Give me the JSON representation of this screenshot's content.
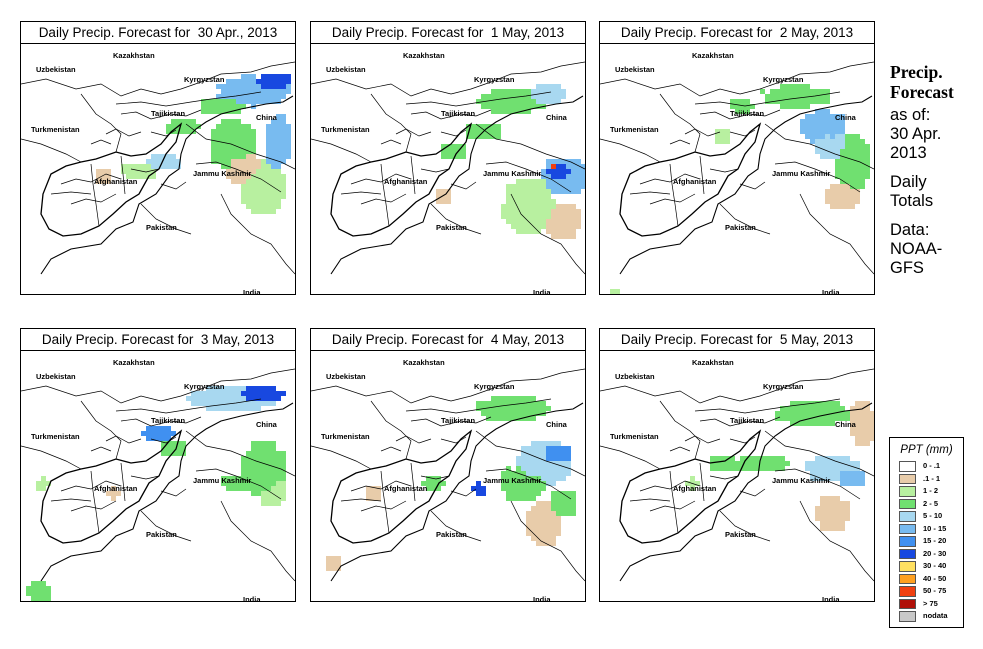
{
  "panels": [
    {
      "title": "Daily Precip. Forecast for  30 Apr., 2013",
      "pattern": 0
    },
    {
      "title": "Daily Precip. Forecast for  1 May, 2013",
      "pattern": 1
    },
    {
      "title": "Daily Precip. Forecast for  2 May, 2013",
      "pattern": 2
    },
    {
      "title": "Daily Precip. Forecast for  3 May, 2013",
      "pattern": 3
    },
    {
      "title": "Daily Precip. Forecast for  4 May, 2013",
      "pattern": 4
    },
    {
      "title": "Daily Precip. Forecast for  5 May, 2013",
      "pattern": 5
    }
  ],
  "map_labels": {
    "kazakhstan": "Kazakhstan",
    "uzbekistan": "Uzbekistan",
    "kyrgyzstan": "Kyrgyzstan",
    "tajikistan": "Tajikistan",
    "turkmenistan": "Turkmenistan",
    "china": "China",
    "afghanistan": "Afghanistan",
    "jammu_kashmir": "Jammu Kashmir",
    "pakistan": "Pakistan",
    "india": "India"
  },
  "side": {
    "title_line1": "Precip.",
    "title_line2": "Forecast",
    "asof_line1": "as of:",
    "asof_line2": "30 Apr.",
    "asof_line3": "2013",
    "daily_line1": "Daily",
    "daily_line2": "Totals",
    "data_line1": "Data:",
    "data_line2": "NOAA-",
    "data_line3": "GFS"
  },
  "legend": {
    "title": "PPT (mm)",
    "items": [
      {
        "label": "0 - .1",
        "color": "#ffffff"
      },
      {
        "label": ".1 - 1",
        "color": "#e8ccaa"
      },
      {
        "label": "1 - 2",
        "color": "#b8f0a0"
      },
      {
        "label": "2 - 5",
        "color": "#70e070"
      },
      {
        "label": "5 - 10",
        "color": "#a8d8f0"
      },
      {
        "label": "10 - 15",
        "color": "#78bbf0"
      },
      {
        "label": "15 - 20",
        "color": "#4090f0"
      },
      {
        "label": "20 - 30",
        "color": "#1848e0"
      },
      {
        "label": "30 - 40",
        "color": "#ffe060"
      },
      {
        "label": "40 - 50",
        "color": "#ffa020"
      },
      {
        "label": "50 - 75",
        "color": "#f04010"
      },
      {
        "label": "> 75",
        "color": "#b01008"
      },
      {
        "label": "nodata",
        "color": "#c8c8c8"
      }
    ]
  }
}
